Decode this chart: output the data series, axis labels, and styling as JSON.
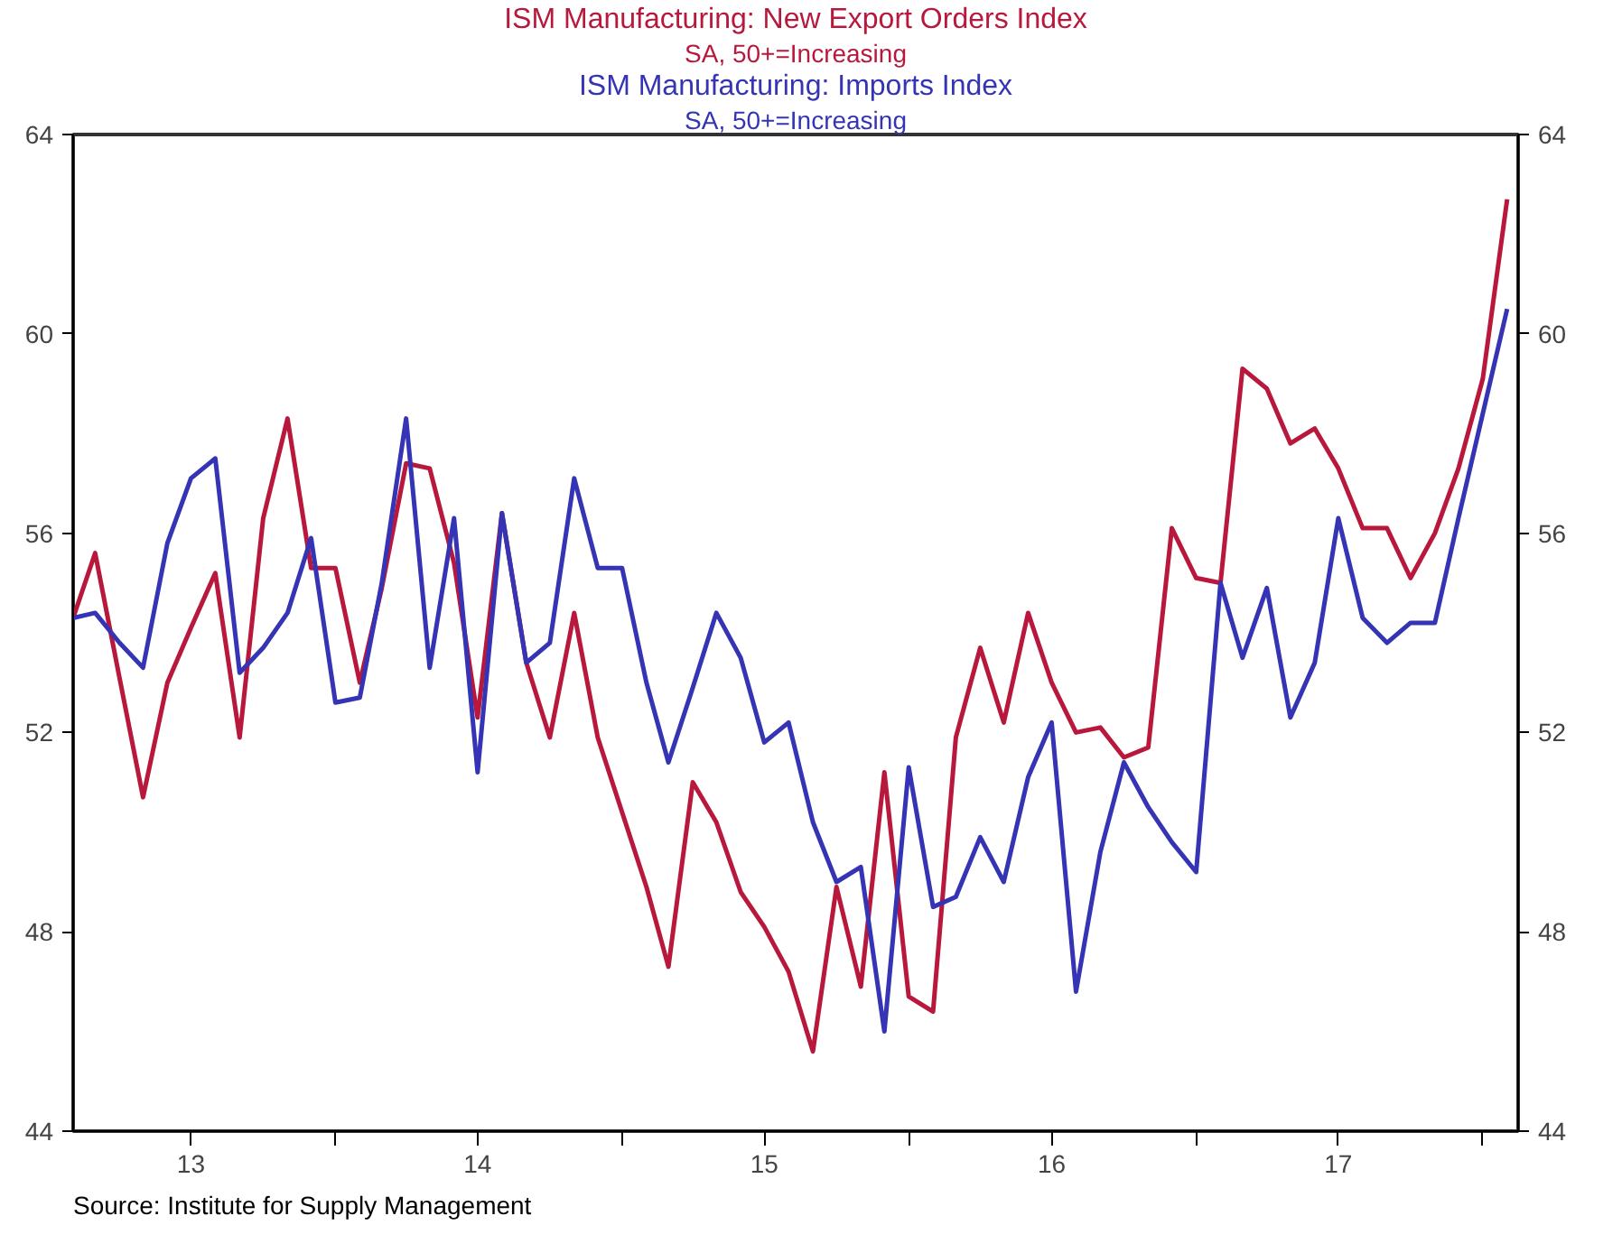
{
  "chart_data": {
    "type": "line",
    "subtitle": "SA, 50+=Increasing",
    "legend": "top",
    "grid": false,
    "marker": "none",
    "line_style": "solid",
    "annotations": [
      "Source:  Institute for Supply Management"
    ],
    "x": [
      "2013-02",
      "2013-03",
      "2013-04",
      "2013-05",
      "2013-06",
      "2013-07",
      "2013-08",
      "2013-09",
      "2013-10",
      "2013-11",
      "2013-12",
      "2014-01",
      "2014-02",
      "2014-03",
      "2014-04",
      "2014-05",
      "2014-06",
      "2014-07",
      "2014-08",
      "2014-09",
      "2014-10",
      "2014-11",
      "2014-12",
      "2015-01",
      "2015-02",
      "2015-03",
      "2015-04",
      "2015-05",
      "2015-06",
      "2015-07",
      "2015-08",
      "2015-09",
      "2015-10",
      "2015-11",
      "2015-12",
      "2016-01",
      "2016-02",
      "2016-03",
      "2016-04",
      "2016-05",
      "2016-06",
      "2016-07",
      "2016-08",
      "2016-09",
      "2016-10",
      "2016-11",
      "2016-12",
      "2017-01",
      "2017-02",
      "2017-03",
      "2017-04",
      "2017-05",
      "2017-06",
      "2017-07",
      "2017-08",
      "2017-09",
      "2017-10",
      "2017-11",
      "2017-12",
      "2018-01",
      "2018-02"
    ],
    "xlim": [
      "2013-02",
      "2018-02-15"
    ],
    "xticks": [
      {
        "value": "2013-07",
        "label": "13"
      },
      {
        "value": "2014-07",
        "label": "14"
      },
      {
        "value": "2015-07",
        "label": "15"
      },
      {
        "value": "2016-07",
        "label": "16"
      },
      {
        "value": "2017-07",
        "label": "17"
      },
      {
        "value": "2014-01",
        "label": null
      },
      {
        "value": "2015-01",
        "label": null
      },
      {
        "value": "2016-01",
        "label": null
      },
      {
        "value": "2017-01",
        "label": null
      },
      {
        "value": "2018-01",
        "label": null
      }
    ],
    "ylim": [
      44,
      64
    ],
    "yticks": [
      44,
      48,
      52,
      56,
      60,
      64
    ],
    "y2lim": [
      44,
      64
    ],
    "y2ticks": [
      44,
      48,
      52,
      56,
      60,
      64
    ],
    "series": [
      {
        "name": "ISM Manufacturing: New Export Orders Index",
        "color": "#b8183c",
        "values": [
          54.3,
          55.6,
          53.1,
          50.7,
          53.0,
          54.1,
          55.2,
          51.9,
          56.3,
          58.3,
          55.3,
          55.3,
          53.0,
          54.9,
          57.4,
          57.3,
          55.4,
          52.3,
          56.4,
          53.4,
          51.9,
          54.4,
          51.9,
          50.4,
          48.9,
          47.3,
          51.0,
          50.2,
          48.8,
          48.1,
          47.2,
          45.6,
          48.9,
          46.9,
          51.2,
          46.7,
          46.4,
          51.9,
          53.7,
          52.2,
          54.4,
          53.0,
          52.0,
          52.1,
          51.5,
          51.7,
          56.1,
          55.1,
          55.0,
          59.3,
          58.9,
          57.8,
          58.1,
          57.3,
          56.1,
          56.1,
          55.1,
          56.0,
          57.3,
          59.1,
          62.7
        ]
      },
      {
        "name": "ISM Manufacturing: Imports Index",
        "color": "#3434b4",
        "values": [
          54.3,
          54.4,
          53.8,
          53.3,
          55.8,
          57.1,
          57.5,
          53.2,
          53.7,
          54.4,
          55.9,
          52.6,
          52.7,
          55.0,
          58.3,
          53.3,
          56.3,
          51.2,
          56.4,
          53.4,
          53.8,
          57.1,
          55.3,
          55.3,
          53.0,
          51.4,
          52.9,
          54.4,
          53.5,
          51.8,
          52.2,
          50.2,
          49.0,
          49.3,
          46.0,
          51.3,
          48.5,
          48.7,
          49.9,
          49.0,
          51.1,
          52.2,
          46.8,
          49.6,
          51.4,
          50.5,
          49.8,
          49.2,
          55.0,
          53.5,
          54.9,
          52.3,
          53.4,
          56.3,
          54.3,
          53.8,
          54.2,
          54.2,
          56.3,
          58.4,
          60.5
        ]
      }
    ]
  }
}
